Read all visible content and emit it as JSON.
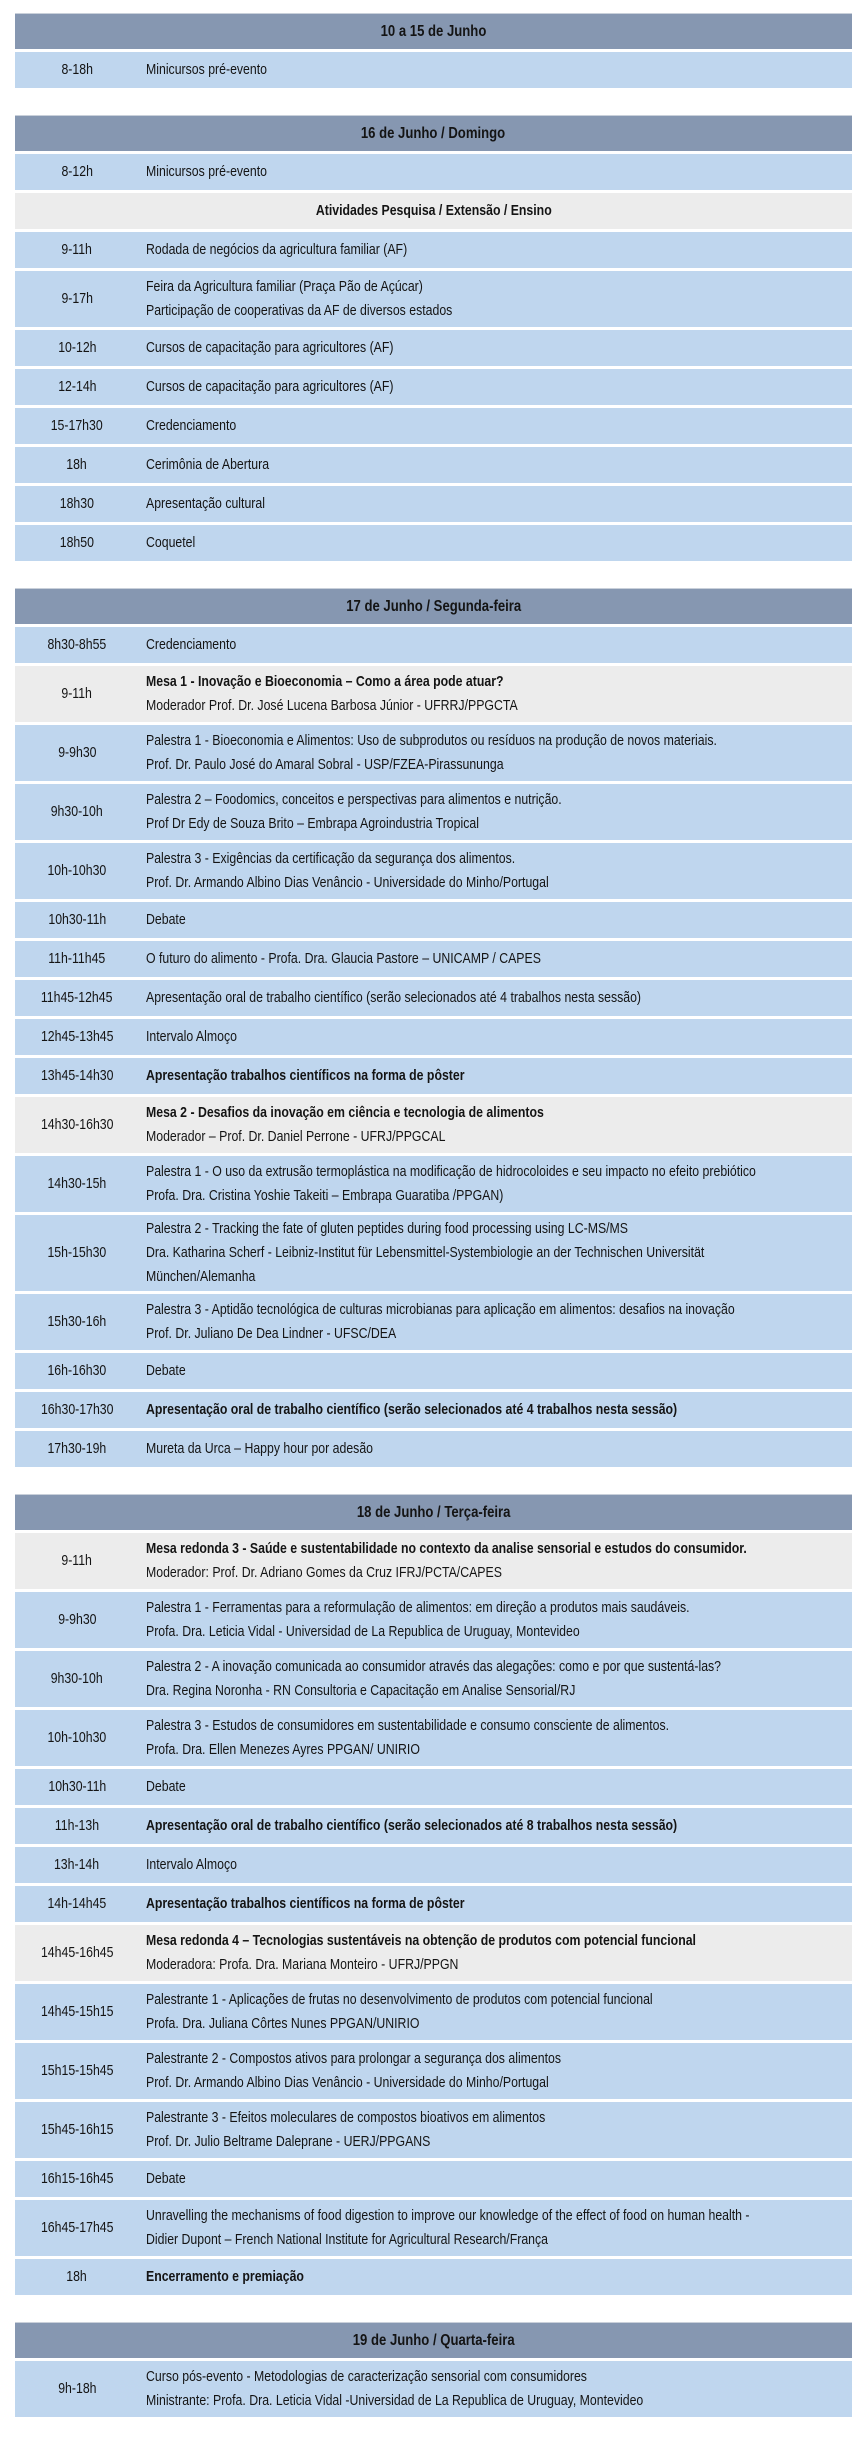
{
  "colors": {
    "day_header_bg": "#8697b1",
    "row_bg": "#bfd6ee",
    "highlight_row_bg": "#ececec",
    "text": "#141414"
  },
  "days": [
    {
      "title": "10 a 15 de Junho",
      "rows": [
        {
          "time": "8-18h",
          "lines": [
            {
              "text": "Minicursos pré-evento"
            }
          ]
        }
      ]
    },
    {
      "title": "16 de Junho / Domingo",
      "rows": [
        {
          "time": "8-12h",
          "lines": [
            {
              "text": "Minicursos pré-evento"
            }
          ]
        },
        {
          "subheader": true,
          "style": "grey",
          "lines": [
            {
              "text": "Atividades Pesquisa / Extensão / Ensino"
            }
          ]
        },
        {
          "time": "9-11h",
          "lines": [
            {
              "text": "Rodada de negócios da agricultura familiar (AF)"
            }
          ]
        },
        {
          "time": "9-17h",
          "lines": [
            {
              "text": "Feira da Agricultura familiar (Praça Pão de Açúcar)"
            },
            {
              "text": "Participação de cooperativas da AF de diversos estados"
            }
          ]
        },
        {
          "time": "10-12h",
          "lines": [
            {
              "text": "Cursos de capacitação para agricultores (AF)"
            }
          ]
        },
        {
          "time": "12-14h",
          "lines": [
            {
              "text": "Cursos de capacitação para agricultores (AF)"
            }
          ]
        },
        {
          "time": "15-17h30",
          "lines": [
            {
              "text": "Credenciamento"
            }
          ]
        },
        {
          "time": "18h",
          "lines": [
            {
              "text": "Cerimônia de Abertura"
            }
          ]
        },
        {
          "time": "18h30",
          "lines": [
            {
              "text": "Apresentação cultural"
            }
          ]
        },
        {
          "time": "18h50",
          "lines": [
            {
              "text": "Coquetel"
            }
          ]
        }
      ]
    },
    {
      "title": "17 de Junho / Segunda-feira",
      "rows": [
        {
          "time": "8h30-8h55",
          "lines": [
            {
              "text": "Credenciamento"
            }
          ]
        },
        {
          "time": "9-11h",
          "style": "grey",
          "lines": [
            {
              "text": "Mesa 1 - Inovação e Bioeconomia – Como a área pode atuar?",
              "bold": true
            },
            {
              "text": "Moderador Prof. Dr. José Lucena Barbosa Júnior - UFRRJ/PPGCTA"
            }
          ]
        },
        {
          "time": "9-9h30",
          "lines": [
            {
              "text": "Palestra 1 - Bioeconomia e Alimentos: Uso de subprodutos ou resíduos na produção de novos materiais."
            },
            {
              "text": "Prof. Dr. Paulo José do Amaral Sobral - USP/FZEA-Pirassununga"
            }
          ]
        },
        {
          "time": "9h30-10h",
          "lines": [
            {
              "text": "Palestra 2 – Foodomics, conceitos e perspectivas para alimentos e nutrição."
            },
            {
              "text": "Prof Dr Edy de Souza Brito – Embrapa Agroindustria Tropical"
            }
          ]
        },
        {
          "time": "10h-10h30",
          "lines": [
            {
              "text": "Palestra 3 - Exigências da certificação da segurança dos alimentos."
            },
            {
              "text": "Prof. Dr. Armando Albino Dias Venâncio - Universidade do Minho/Portugal"
            }
          ]
        },
        {
          "time": "10h30-11h",
          "lines": [
            {
              "text": "Debate"
            }
          ]
        },
        {
          "time": "11h-11h45",
          "lines": [
            {
              "text": "O futuro do alimento - Profa. Dra. Glaucia Pastore – UNICAMP / CAPES"
            }
          ]
        },
        {
          "time": "11h45-12h45",
          "lines": [
            {
              "text": "Apresentação oral de trabalho científico (serão selecionados até 4 trabalhos nesta sessão)"
            }
          ]
        },
        {
          "time": "12h45-13h45",
          "lines": [
            {
              "text": "Intervalo Almoço"
            }
          ]
        },
        {
          "time": "13h45-14h30",
          "lines": [
            {
              "text": "Apresentação trabalhos científicos na forma de pôster",
              "bold": true
            }
          ]
        },
        {
          "time": "14h30-16h30",
          "style": "grey",
          "lines": [
            {
              "text": "Mesa 2 - Desafios da inovação em ciência e tecnologia de alimentos",
              "bold": true
            },
            {
              "text": "Moderador – Prof. Dr. Daniel Perrone - UFRJ/PPGCAL"
            }
          ]
        },
        {
          "time": "14h30-15h",
          "lines": [
            {
              "text": "Palestra 1 - O uso da extrusão termoplástica na modificação de hidrocoloides e seu impacto no efeito prebiótico"
            },
            {
              "text": "Profa. Dra. Cristina Yoshie Takeiti – Embrapa Guaratiba /PPGAN)"
            }
          ]
        },
        {
          "time": "15h-15h30",
          "lines": [
            {
              "text": "Palestra 2 - Tracking the fate of gluten peptides during food processing using LC-MS/MS"
            },
            {
              "text": "Dra. Katharina Scherf - Leibniz-Institut für Lebensmittel-Systembiologie an der Technischen Universität"
            },
            {
              "text": "München/Alemanha"
            }
          ]
        },
        {
          "time": "15h30-16h",
          "lines": [
            {
              "text": "Palestra 3 - Aptidão tecnológica de culturas microbianas para aplicação em alimentos: desafios na inovação"
            },
            {
              "text": "Prof. Dr. Juliano De Dea Lindner - UFSC/DEA"
            }
          ]
        },
        {
          "time": "16h-16h30",
          "lines": [
            {
              "text": "Debate"
            }
          ]
        },
        {
          "time": "16h30-17h30",
          "lines": [
            {
              "text": "Apresentação oral de trabalho científico (serão selecionados até 4 trabalhos nesta sessão)",
              "bold": true
            }
          ]
        },
        {
          "time": "17h30-19h",
          "lines": [
            {
              "text": "Mureta da Urca – Happy hour por adesão"
            }
          ]
        }
      ]
    },
    {
      "title": "18 de Junho / Terça-feira",
      "rows": [
        {
          "time": "9-11h",
          "style": "grey",
          "lines": [
            {
              "text": "Mesa redonda 3 - Saúde e sustentabilidade no contexto da analise sensorial e estudos do consumidor.",
              "bold": true
            },
            {
              "text": "Moderador: Prof. Dr. Adriano Gomes da Cruz IFRJ/PCTA/CAPES"
            }
          ]
        },
        {
          "time": "9-9h30",
          "lines": [
            {
              "text": "Palestra 1 - Ferramentas para a reformulação de alimentos: em direção a produtos mais saudáveis."
            },
            {
              "text": "Profa. Dra. Leticia Vidal - Universidad de La Republica de Uruguay, Montevideo"
            }
          ]
        },
        {
          "time": "9h30-10h",
          "lines": [
            {
              "text": "Palestra 2 - A inovação comunicada ao consumidor através das alegações: como e por que sustentá-las?"
            },
            {
              "text": "Dra. Regina Noronha - RN Consultoria e Capacitação em Analise Sensorial/RJ"
            }
          ]
        },
        {
          "time": "10h-10h30",
          "lines": [
            {
              "text": " Palestra 3 - Estudos de consumidores em sustentabilidade e consumo consciente de alimentos."
            },
            {
              "text": "Profa. Dra. Ellen Menezes Ayres PPGAN/ UNIRIO"
            }
          ]
        },
        {
          "time": "10h30-11h",
          "lines": [
            {
              "text": "Debate"
            }
          ]
        },
        {
          "time": "11h-13h",
          "lines": [
            {
              "text": "Apresentação oral de trabalho científico (serão selecionados até 8 trabalhos nesta sessão)",
              "bold": true
            }
          ]
        },
        {
          "time": "13h-14h",
          "lines": [
            {
              "text": "Intervalo Almoço"
            }
          ]
        },
        {
          "time": "14h-14h45",
          "lines": [
            {
              "text": "Apresentação trabalhos científicos na forma de pôster",
              "bold": true
            }
          ]
        },
        {
          "time": "14h45-16h45",
          "style": "grey",
          "lines": [
            {
              "text": "Mesa redonda 4 – Tecnologias sustentáveis na obtenção de produtos com potencial funcional",
              "bold": true
            },
            {
              "text": "Moderadora: Profa. Dra. Mariana Monteiro - UFRJ/PPGN"
            }
          ]
        },
        {
          "time": "14h45-15h15",
          "lines": [
            {
              "text": "Palestrante 1 - Aplicações de frutas no desenvolvimento de produtos com potencial funcional"
            },
            {
              "text": "Profa. Dra. Juliana Côrtes Nunes PPGAN/UNIRIO"
            }
          ]
        },
        {
          "time": "15h15-15h45",
          "lines": [
            {
              "text": "Palestrante 2 - Compostos ativos para prolongar a segurança dos alimentos"
            },
            {
              "text": "Prof. Dr. Armando Albino Dias Venâncio - Universidade do Minho/Portugal"
            }
          ]
        },
        {
          "time": "15h45-16h15",
          "lines": [
            {
              "text": "Palestrante 3 - Efeitos moleculares de compostos bioativos em alimentos"
            },
            {
              "text": "Prof. Dr. Julio Beltrame Daleprane - UERJ/PPGANS"
            }
          ]
        },
        {
          "time": "16h15-16h45",
          "lines": [
            {
              "text": "Debate"
            }
          ]
        },
        {
          "time": "16h45-17h45",
          "lines": [
            {
              "text": "Unravelling the mechanisms of food digestion to improve our knowledge of the effect of food on human health -"
            },
            {
              "text": "Didier Dupont – French National Institute for Agricultural Research/França"
            }
          ]
        },
        {
          "time": "18h",
          "lines": [
            {
              "text": "Encerramento e premiação",
              "bold": true
            }
          ]
        }
      ]
    },
    {
      "title": "19 de Junho / Quarta-feira",
      "rows": [
        {
          "time": "9h-18h",
          "lines": [
            {
              "text": "Curso pós-evento - Metodologias de caracterização sensorial com consumidores"
            },
            {
              "text": "Ministrante: Profa. Dra. Leticia Vidal -Universidad de La Republica de Uruguay, Montevideo"
            }
          ]
        }
      ]
    }
  ]
}
